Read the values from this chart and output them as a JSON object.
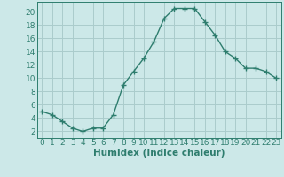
{
  "x": [
    0,
    1,
    2,
    3,
    4,
    5,
    6,
    7,
    8,
    9,
    10,
    11,
    12,
    13,
    14,
    15,
    16,
    17,
    18,
    19,
    20,
    21,
    22,
    23
  ],
  "y": [
    5,
    4.5,
    3.5,
    2.5,
    2,
    2.5,
    2.5,
    4.5,
    9,
    11,
    13,
    15.5,
    19,
    20.5,
    20.5,
    20.5,
    18.5,
    16.5,
    14,
    13,
    11.5,
    11.5,
    11,
    10
  ],
  "line_color": "#2e7d6e",
  "marker": "+",
  "bg_color": "#cce8e8",
  "grid_color": "#aacccc",
  "xlabel": "Humidex (Indice chaleur)",
  "xlabel_fontsize": 7.5,
  "tick_fontsize": 6.5,
  "xlim": [
    -0.5,
    23.5
  ],
  "ylim": [
    1,
    21.5
  ],
  "yticks": [
    2,
    4,
    6,
    8,
    10,
    12,
    14,
    16,
    18,
    20
  ],
  "xticks": [
    0,
    1,
    2,
    3,
    4,
    5,
    6,
    7,
    8,
    9,
    10,
    11,
    12,
    13,
    14,
    15,
    16,
    17,
    18,
    19,
    20,
    21,
    22,
    23
  ],
  "linewidth": 1.0,
  "markersize": 4
}
